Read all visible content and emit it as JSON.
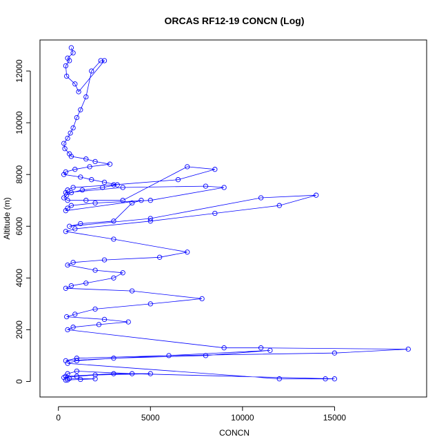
{
  "chart_data": {
    "type": "scatter",
    "title": "ORCAS RF12-19 CONCN (Log)",
    "xlabel": "CONCN",
    "ylabel": "Altitude (m)",
    "xlim": [
      -1000,
      20000
    ],
    "ylim": [
      -600,
      13200
    ],
    "x_ticks": [
      0,
      5000,
      10000,
      15000
    ],
    "x_tick_labels": [
      "0",
      "5000",
      "10000",
      "15000"
    ],
    "y_ticks": [
      0,
      2000,
      4000,
      6000,
      8000,
      10000,
      12000
    ],
    "y_tick_labels": [
      "0",
      "2000",
      "4000",
      "6000",
      "8000",
      "10000",
      "12000"
    ],
    "grid": false,
    "legend": "none",
    "marker": "open-circle",
    "connected": true,
    "color": "#0000ff",
    "series": [
      {
        "x": [
          700,
          800,
          500,
          600,
          400,
          450,
          900,
          1100,
          2500,
          2300,
          1800,
          1500,
          1200,
          1000,
          800,
          650,
          500,
          300,
          350,
          600,
          700,
          1500,
          2000,
          2800,
          1700,
          900,
          400,
          300,
          1200,
          1800,
          2500,
          3200,
          2400,
          1300,
          700,
          450,
          300,
          500,
          1500,
          3500,
          7000,
          8500,
          6500,
          3000,
          800,
          500,
          400,
          3500,
          8000,
          9000,
          5000,
          2000,
          700,
          500,
          400,
          4500,
          4000,
          3000,
          1200,
          600,
          5000,
          11000,
          14000,
          12000,
          8500,
          5000,
          900,
          400,
          3000,
          7000,
          5500,
          2500,
          800,
          500,
          2000,
          3500,
          3000,
          1500,
          700,
          400,
          4000,
          7800,
          5000,
          2000,
          900,
          450,
          2500,
          3800,
          2200,
          800,
          500,
          9000,
          11000,
          19000,
          15000,
          6000,
          1000,
          400,
          11500,
          8000,
          3000,
          1000,
          500,
          12000,
          14500,
          15000,
          4000,
          1000,
          500,
          400,
          3000,
          5000,
          2000,
          1000,
          300,
          600,
          2000,
          1200,
          500,
          400
        ],
        "y": [
          12900,
          12700,
          12500,
          12400,
          12200,
          11800,
          11500,
          11200,
          12400,
          12400,
          12000,
          11000,
          10500,
          10200,
          9800,
          9600,
          9400,
          9200,
          9000,
          8800,
          8700,
          8600,
          8500,
          8400,
          8300,
          8200,
          8100,
          8000,
          7900,
          7800,
          7700,
          7600,
          7500,
          7400,
          7300,
          7200,
          7100,
          7000,
          7000,
          7000,
          8300,
          8200,
          7800,
          7600,
          7500,
          7400,
          7300,
          7500,
          7550,
          7500,
          7000,
          6900,
          6800,
          6700,
          6600,
          7000,
          6900,
          6200,
          6100,
          6000,
          6300,
          7100,
          7200,
          6800,
          6500,
          6200,
          5900,
          5800,
          5500,
          5000,
          4800,
          4700,
          4600,
          4500,
          4300,
          4200,
          4000,
          3800,
          3700,
          3600,
          3500,
          3200,
          3000,
          2800,
          2600,
          2500,
          2400,
          2300,
          2200,
          2100,
          2000,
          1300,
          1300,
          1250,
          1100,
          1000,
          900,
          800,
          1200,
          1000,
          900,
          800,
          700,
          100,
          100,
          100,
          300,
          400,
          300,
          200,
          300,
          300,
          250,
          200,
          150,
          120,
          100,
          80,
          60,
          50
        ]
      }
    ]
  }
}
